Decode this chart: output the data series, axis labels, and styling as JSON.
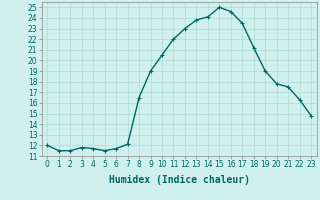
{
  "x": [
    0,
    1,
    2,
    3,
    4,
    5,
    6,
    7,
    8,
    9,
    10,
    11,
    12,
    13,
    14,
    15,
    16,
    17,
    18,
    19,
    20,
    21,
    22,
    23
  ],
  "y": [
    12,
    11.5,
    11.5,
    11.8,
    11.7,
    11.5,
    11.7,
    12.1,
    16.5,
    19.0,
    20.5,
    22.0,
    23.0,
    23.8,
    24.1,
    25.0,
    24.6,
    23.5,
    21.2,
    19.0,
    17.8,
    17.5,
    16.3,
    14.8
  ],
  "line_color": "#006666",
  "marker": "+",
  "marker_size": 3,
  "bg_color": "#d0f0f0",
  "grid_color": "#b0d8d8",
  "xlabel": "Humidex (Indice chaleur)",
  "ylim": [
    11,
    25.5
  ],
  "xlim": [
    -0.5,
    23.5
  ],
  "yticks": [
    11,
    12,
    13,
    14,
    15,
    16,
    17,
    18,
    19,
    20,
    21,
    22,
    23,
    24,
    25
  ],
  "xticks": [
    0,
    1,
    2,
    3,
    4,
    5,
    6,
    7,
    8,
    9,
    10,
    11,
    12,
    13,
    14,
    15,
    16,
    17,
    18,
    19,
    20,
    21,
    22,
    23
  ],
  "tick_fontsize": 5.5,
  "xlabel_fontsize": 7,
  "line_width": 1.0,
  "marker_edge_width": 0.8
}
